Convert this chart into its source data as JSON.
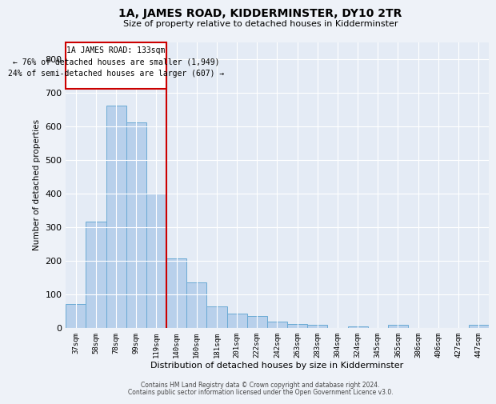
{
  "title": "1A, JAMES ROAD, KIDDERMINSTER, DY10 2TR",
  "subtitle": "Size of property relative to detached houses in Kidderminster",
  "xlabel": "Distribution of detached houses by size in Kidderminster",
  "ylabel": "Number of detached properties",
  "categories": [
    "37sqm",
    "58sqm",
    "78sqm",
    "99sqm",
    "119sqm",
    "140sqm",
    "160sqm",
    "181sqm",
    "201sqm",
    "222sqm",
    "242sqm",
    "263sqm",
    "283sqm",
    "304sqm",
    "324sqm",
    "345sqm",
    "365sqm",
    "386sqm",
    "406sqm",
    "427sqm",
    "447sqm"
  ],
  "values": [
    70,
    315,
    660,
    610,
    400,
    207,
    135,
    65,
    42,
    35,
    18,
    12,
    10,
    0,
    5,
    0,
    8,
    0,
    0,
    0,
    8
  ],
  "bar_color": "#b8d0eb",
  "bar_edge_color": "#6aaad4",
  "red_line_color": "#cc0000",
  "box_edge_color": "#cc0000",
  "background_color": "#eef2f8",
  "plot_bg_color": "#e4ebf5",
  "ylim": [
    0,
    850
  ],
  "yticks": [
    0,
    100,
    200,
    300,
    400,
    500,
    600,
    700,
    800
  ],
  "annotation_line1": "1A JAMES ROAD: 133sqm",
  "annotation_line2": "← 76% of detached houses are smaller (1,949)",
  "annotation_line3": "24% of semi-detached houses are larger (607) →",
  "footnote1": "Contains HM Land Registry data © Crown copyright and database right 2024.",
  "footnote2": "Contains public sector information licensed under the Open Government Licence v3.0."
}
